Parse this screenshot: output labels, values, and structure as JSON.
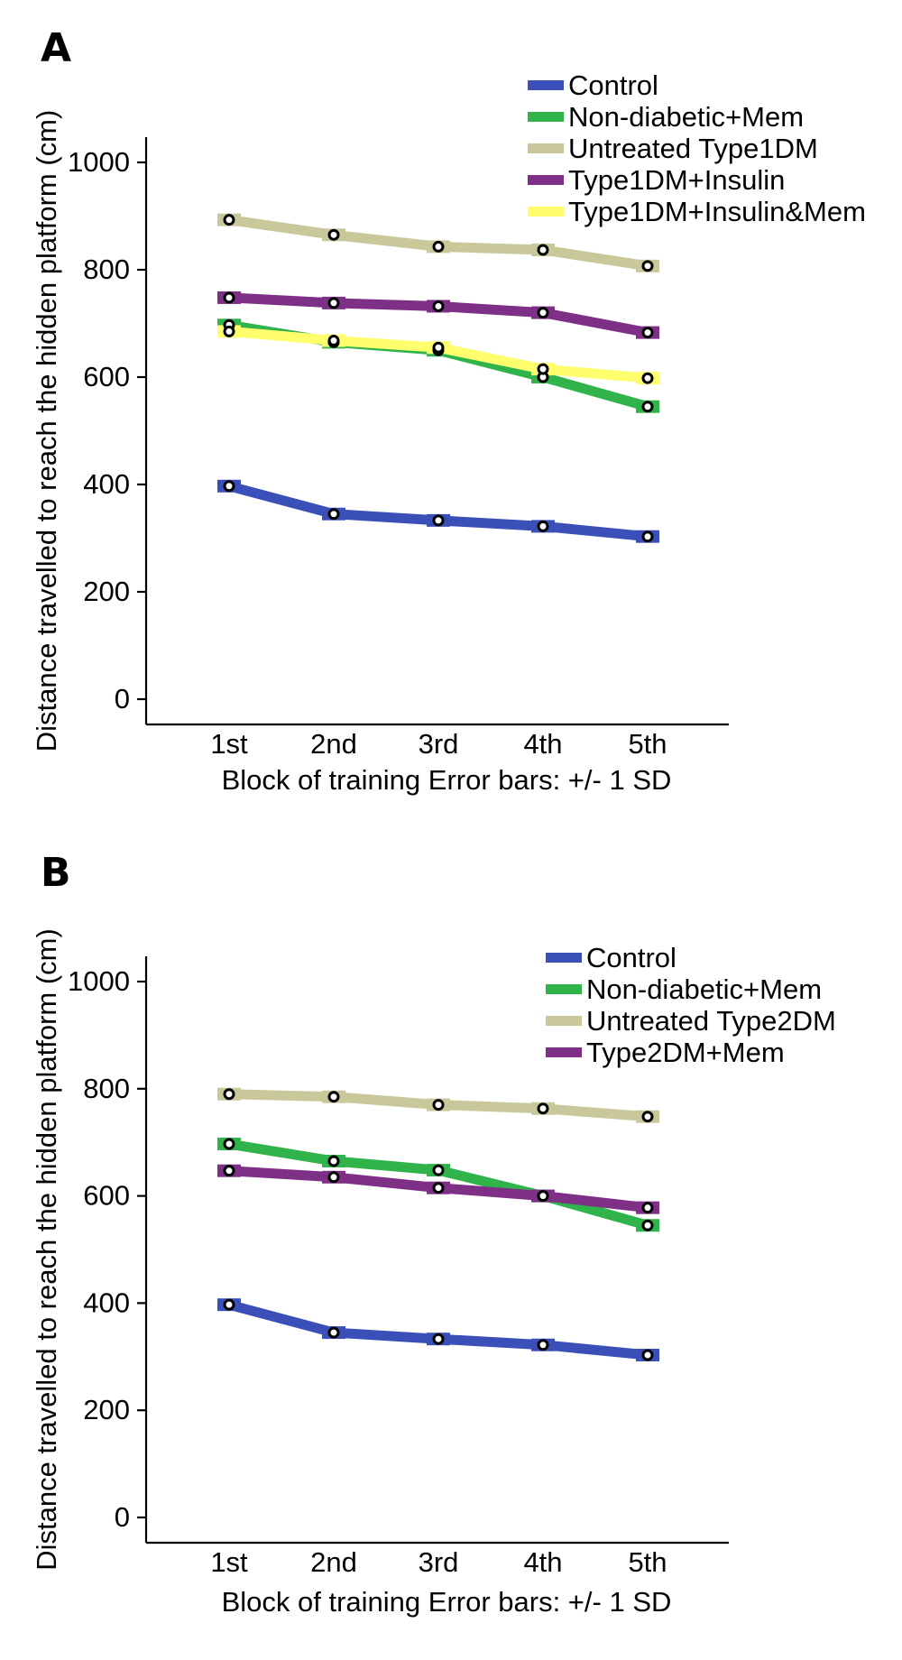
{
  "chart_data": [
    {
      "type": "line",
      "panel_label": "A",
      "title": "",
      "xlabel": "Block of training Error bars: +/- 1 SD",
      "ylabel": "Distance travelled to reach the hidden platform (cm)",
      "categories": [
        "1st",
        "2nd",
        "3rd",
        "4th",
        "5th"
      ],
      "ylim": [
        0,
        1000
      ],
      "yticks": [
        0,
        200,
        400,
        600,
        800,
        1000
      ],
      "legend_position": "top-right",
      "grid": false,
      "series": [
        {
          "name": "Control",
          "color": "#3a50b8",
          "values": [
            397,
            345,
            333,
            322,
            303
          ]
        },
        {
          "name": "Non-diabetic+Mem",
          "color": "#2fb34a",
          "values": [
            697,
            665,
            650,
            600,
            545
          ]
        },
        {
          "name": "Untreated Type1DM",
          "color": "#c9c89a",
          "values": [
            893,
            865,
            843,
            837,
            807
          ]
        },
        {
          "name": "Type1DM+Insulin",
          "color": "#7e2f86",
          "values": [
            748,
            738,
            732,
            720,
            683
          ]
        },
        {
          "name": "Type1DM+Insulin&Mem",
          "color": "#ffff6e",
          "values": [
            685,
            668,
            655,
            615,
            598
          ]
        }
      ]
    },
    {
      "type": "line",
      "panel_label": "B",
      "title": "",
      "xlabel": "Block of training Error bars: +/- 1 SD",
      "ylabel": "Distance travelled to reach the hidden platform (cm)",
      "categories": [
        "1st",
        "2nd",
        "3rd",
        "4th",
        "5th"
      ],
      "ylim": [
        0,
        1000
      ],
      "yticks": [
        0,
        200,
        400,
        600,
        800,
        1000
      ],
      "legend_position": "top-right",
      "grid": false,
      "series": [
        {
          "name": "Control",
          "color": "#3a50b8",
          "values": [
            397,
            345,
            333,
            322,
            303
          ]
        },
        {
          "name": "Non-diabetic+Mem",
          "color": "#2fb34a",
          "values": [
            697,
            665,
            648,
            600,
            545
          ]
        },
        {
          "name": "Untreated Type2DM",
          "color": "#c9c89a",
          "values": [
            790,
            785,
            770,
            763,
            748
          ]
        },
        {
          "name": "Type2DM+Mem",
          "color": "#7e2f86",
          "values": [
            647,
            635,
            615,
            600,
            578
          ]
        }
      ]
    }
  ]
}
